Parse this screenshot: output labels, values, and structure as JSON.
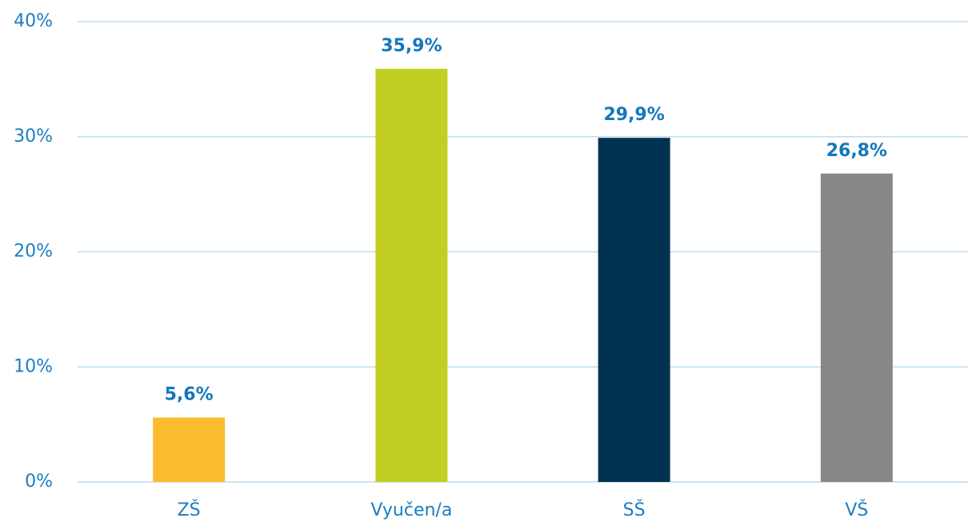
{
  "chart_data": {
    "type": "bar",
    "categories": [
      "ZŠ",
      "Vyučen/a",
      "SŠ",
      "VŠ"
    ],
    "values": [
      5.6,
      35.9,
      29.9,
      26.8
    ],
    "value_labels": [
      "5,6%",
      "35,9%",
      "29,9%",
      "26,8%"
    ],
    "colors": [
      "#fbbc30",
      "#c2cf22",
      "#003352",
      "#878787"
    ],
    "ylim": [
      0,
      40
    ],
    "yticks": [
      {
        "value": 0,
        "label": "0%"
      },
      {
        "value": 10,
        "label": "10%"
      },
      {
        "value": 20,
        "label": "20%"
      },
      {
        "value": 30,
        "label": "30%"
      },
      {
        "value": 40,
        "label": "40%"
      }
    ],
    "grid": true
  }
}
